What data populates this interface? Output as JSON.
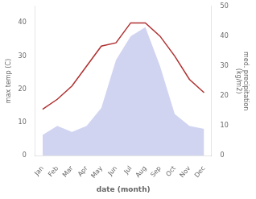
{
  "chart_data": {
    "type": "line",
    "categories": [
      "Jan",
      "Feb",
      "Mar",
      "Apr",
      "May",
      "Jun",
      "Jul",
      "Aug",
      "Sep",
      "Oct",
      "Nov",
      "Dec"
    ],
    "series": [
      {
        "type": "area",
        "axis": "y2",
        "color": "#b0b8e8",
        "values": [
          7,
          10,
          8,
          10,
          16,
          32,
          40,
          43,
          30,
          14,
          10,
          9
        ]
      },
      {
        "type": "line",
        "color": "#b03030",
        "values": [
          14,
          17,
          21,
          27,
          33,
          34,
          40,
          40,
          36,
          30,
          23,
          19
        ]
      }
    ],
    "xlabel": "date (month)",
    "ylabel": "max temp (C)",
    "y2label": "med. precipitation\n(kg/m2)",
    "ylim": [
      0,
      45
    ],
    "yticks": [
      0,
      10,
      20,
      30,
      40
    ],
    "y2lim": [
      0,
      50
    ],
    "y2ticks": [
      0,
      10,
      20,
      30,
      40,
      50
    ],
    "grid": false
  }
}
